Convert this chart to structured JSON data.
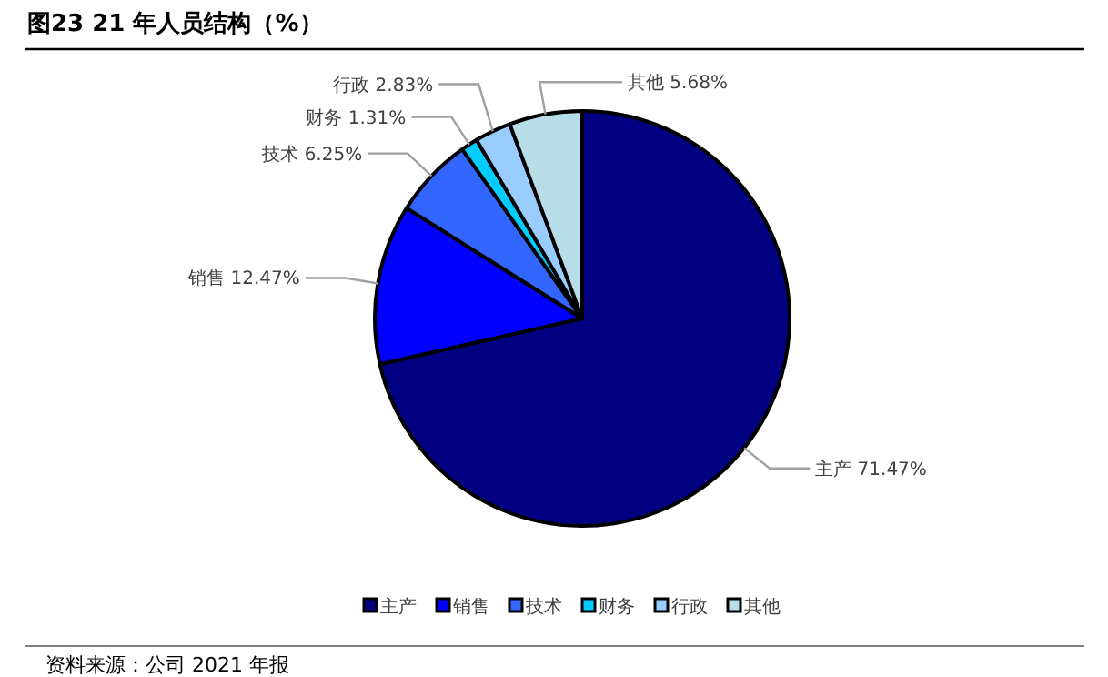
{
  "chart_data": {
    "type": "pie",
    "title": "图23 21 年人员结构（%）",
    "categories": [
      "主产",
      "销售",
      "技术",
      "财务",
      "行政",
      "其他"
    ],
    "values": [
      71.47,
      12.47,
      6.25,
      1.31,
      2.83,
      5.68
    ],
    "value_labels": [
      "71.47%",
      "12.47%",
      "6.25%",
      "1.31%",
      "2.83%",
      "5.68%"
    ],
    "colors": [
      "#000080",
      "#0000ff",
      "#3366ff",
      "#00ccff",
      "#99ccff",
      "#b7dee8"
    ],
    "legend": "bottom",
    "annotations": [
      "资料来源：公司 2021 年报"
    ]
  }
}
